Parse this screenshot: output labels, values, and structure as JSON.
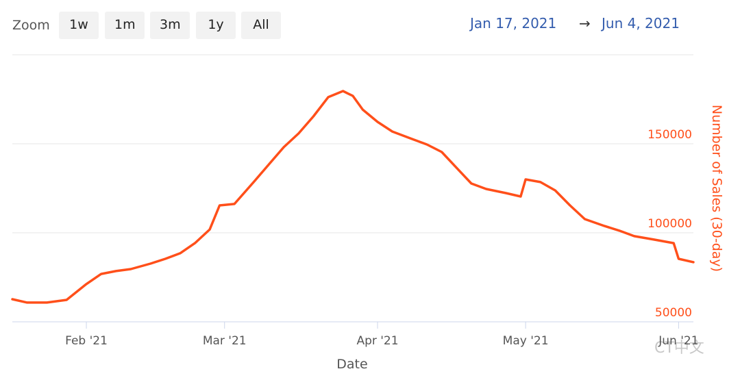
{
  "controls": {
    "zoom_label": "Zoom",
    "zoom_buttons": [
      "1w",
      "1m",
      "3m",
      "1y",
      "All"
    ],
    "range_start": "Jan 17, 2021",
    "range_separator": "→",
    "range_end": "Jun 4, 2021"
  },
  "watermark": "CT中文",
  "chart_data": {
    "type": "line",
    "xlabel": "Date",
    "ylabel": "Number of Sales (30-day)",
    "color": "#ff4f1a",
    "x": [
      "2021-01-17",
      "2021-01-20",
      "2021-01-24",
      "2021-01-28",
      "2021-02-01",
      "2021-02-04",
      "2021-02-07",
      "2021-02-10",
      "2021-02-14",
      "2021-02-17",
      "2021-02-20",
      "2021-02-23",
      "2021-02-26",
      "2021-02-28",
      "2021-03-03",
      "2021-03-07",
      "2021-03-10",
      "2021-03-13",
      "2021-03-16",
      "2021-03-19",
      "2021-03-22",
      "2021-03-25",
      "2021-03-27",
      "2021-03-29",
      "2021-04-01",
      "2021-04-04",
      "2021-04-08",
      "2021-04-11",
      "2021-04-14",
      "2021-04-17",
      "2021-04-20",
      "2021-04-23",
      "2021-04-27",
      "2021-04-30",
      "2021-05-01",
      "2021-05-04",
      "2021-05-07",
      "2021-05-10",
      "2021-05-13",
      "2021-05-17",
      "2021-05-20",
      "2021-05-23",
      "2021-05-27",
      "2021-05-31",
      "2021-06-01",
      "2021-06-04"
    ],
    "values": [
      62700,
      60800,
      60800,
      62300,
      71200,
      76900,
      78500,
      79600,
      82700,
      85400,
      88500,
      94200,
      101900,
      115400,
      116200,
      128800,
      138500,
      148100,
      155800,
      165400,
      176200,
      179600,
      176900,
      169200,
      162300,
      156900,
      152700,
      149600,
      145400,
      136500,
      127700,
      124600,
      122300,
      120400,
      130000,
      128500,
      123800,
      115400,
      107700,
      103800,
      101200,
      98100,
      96200,
      94200,
      85400,
      83500
    ],
    "xlim": [
      "2021-01-17",
      "2021-06-04"
    ],
    "xticks": [
      {
        "value": "2021-02-01",
        "label": "Feb '21"
      },
      {
        "value": "2021-03-01",
        "label": "Mar '21"
      },
      {
        "value": "2021-04-01",
        "label": "Apr '21"
      },
      {
        "value": "2021-05-01",
        "label": "May '21"
      },
      {
        "value": "2021-06-01",
        "label": "Jun '21"
      }
    ],
    "ylim": [
      50000,
      200000
    ],
    "yticks": [
      50000,
      100000,
      150000
    ],
    "y_axis_side": "right",
    "grid": true
  }
}
